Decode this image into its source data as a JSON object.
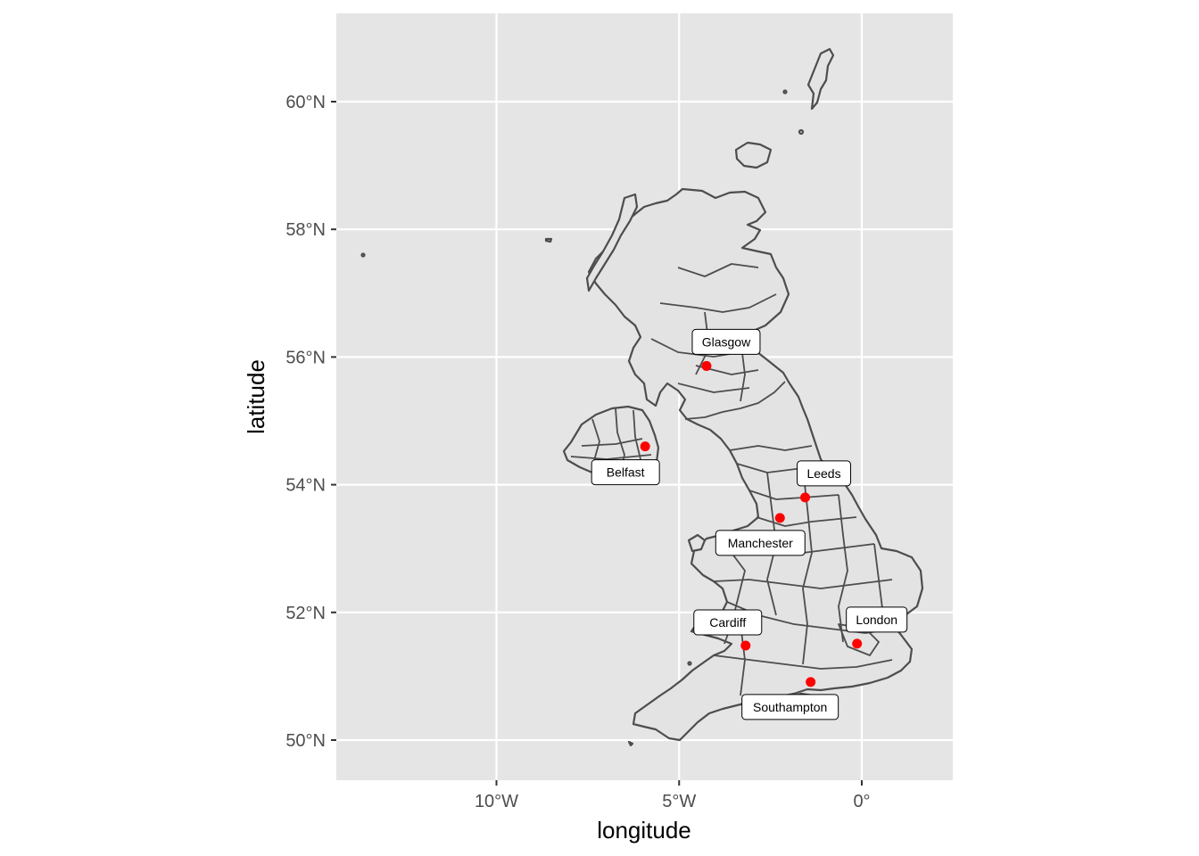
{
  "map": {
    "x_axis": {
      "title": "longitude",
      "ticks": [
        {
          "value": -10,
          "label": "10°W"
        },
        {
          "value": -5,
          "label": "5°W"
        },
        {
          "value": 0,
          "label": "0°"
        }
      ]
    },
    "y_axis": {
      "title": "latitude",
      "ticks": [
        {
          "value": 50,
          "label": "50°N"
        },
        {
          "value": 52,
          "label": "52°N"
        },
        {
          "value": 54,
          "label": "54°N"
        },
        {
          "value": 56,
          "label": "56°N"
        },
        {
          "value": 58,
          "label": "58°N"
        },
        {
          "value": 60,
          "label": "60°N"
        }
      ]
    },
    "cities": [
      {
        "name": "Glasgow",
        "lon": -4.25,
        "lat": 55.86
      },
      {
        "name": "Belfast",
        "lon": -5.93,
        "lat": 54.6
      },
      {
        "name": "Leeds",
        "lon": -1.55,
        "lat": 53.8
      },
      {
        "name": "Manchester",
        "lon": -2.24,
        "lat": 53.48
      },
      {
        "name": "Cardiff",
        "lon": -3.18,
        "lat": 51.48
      },
      {
        "name": "London",
        "lon": -0.13,
        "lat": 51.51
      },
      {
        "name": "Southampton",
        "lon": -1.4,
        "lat": 50.91
      }
    ],
    "colors": {
      "panel_background": "#e5e5e5",
      "gridline": "#ffffff",
      "land_fill": "#e3e3e3",
      "outline": "#4d4d4d",
      "point": "#ff0000",
      "label_fill": "#ffffff"
    }
  }
}
